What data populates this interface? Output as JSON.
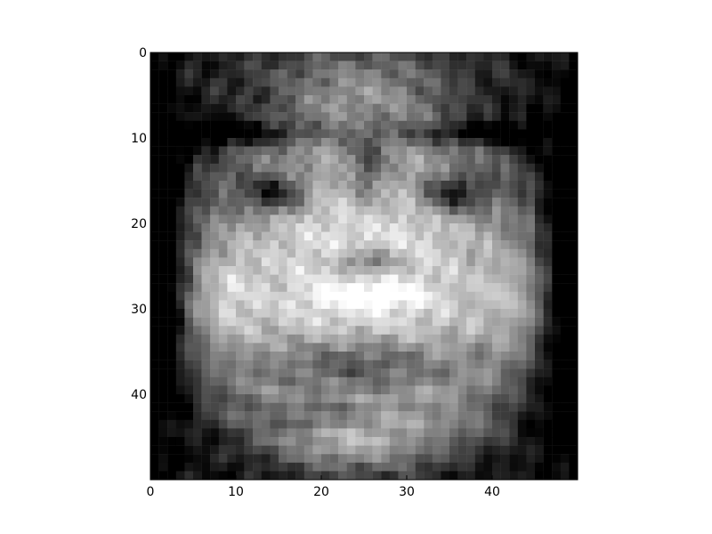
{
  "chart_data": {
    "type": "heatmap",
    "colormap": "grayscale",
    "rows": 50,
    "cols": 50,
    "xlim": [
      0,
      49
    ],
    "ylim": [
      0,
      49
    ],
    "y_axis_direction": "top-to-bottom",
    "xticks": [
      0,
      10,
      20,
      30,
      40
    ],
    "yticks": [
      0,
      10,
      20,
      30,
      40
    ],
    "xtick_labels": [
      "0",
      "10",
      "20",
      "30",
      "40"
    ],
    "ytick_labels": [
      "0",
      "10",
      "20",
      "30",
      "40"
    ],
    "title": "",
    "xlabel": "",
    "ylabel": "",
    "grid": false,
    "legend": "none",
    "content": "low-resolution grayscale face image",
    "colors": {
      "background": "#ffffff",
      "frame": "#000000"
    }
  }
}
